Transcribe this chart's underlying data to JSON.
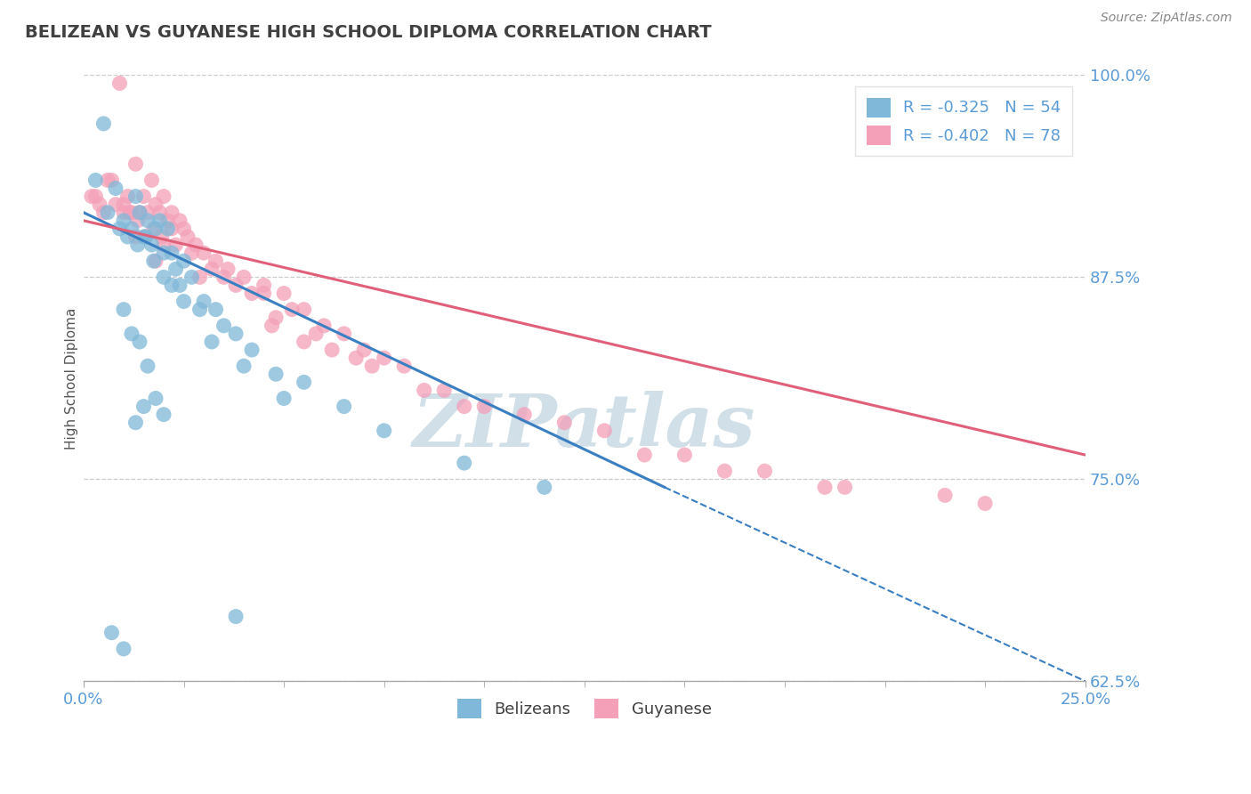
{
  "title": "BELIZEAN VS GUYANESE HIGH SCHOOL DIPLOMA CORRELATION CHART",
  "source": "Source: ZipAtlas.com",
  "ylabel": "High School Diploma",
  "xlim": [
    0.0,
    25.0
  ],
  "ylim": [
    62.5,
    100.0
  ],
  "yticks": [
    62.5,
    75.0,
    87.5,
    100.0
  ],
  "xticks": [
    0.0,
    25.0
  ],
  "r_blue": -0.325,
  "n_blue": 54,
  "r_pink": -0.402,
  "n_pink": 78,
  "color_blue": "#7fb8d8",
  "color_pink": "#f4a0b8",
  "color_blue_line": "#3a7fc1",
  "color_pink_line": "#e0607a",
  "color_title": "#404040",
  "color_axis_labels": "#5b9bd5",
  "watermark_text": "ZIPatlas",
  "watermark_color": "#d0dfe8",
  "blue_line_x0": 0.0,
  "blue_line_y0": 91.5,
  "blue_line_x1": 14.5,
  "blue_line_y1": 74.5,
  "blue_dash_x0": 14.5,
  "blue_dash_y0": 74.5,
  "blue_dash_x1": 25.0,
  "blue_dash_y1": 62.5,
  "pink_line_x0": 0.0,
  "pink_line_y0": 91.0,
  "pink_line_x1": 25.0,
  "pink_line_y1": 76.5,
  "blue_scatter_x": [
    0.5,
    0.8,
    1.0,
    1.2,
    1.3,
    1.4,
    1.5,
    1.6,
    1.7,
    1.8,
    1.9,
    2.0,
    2.1,
    2.2,
    2.3,
    2.5,
    2.7,
    3.0,
    3.3,
    3.8,
    4.2,
    5.5,
    6.5,
    7.5,
    9.5,
    11.5,
    0.3,
    0.6,
    0.9,
    1.1,
    1.35,
    1.55,
    1.75,
    2.0,
    2.4,
    2.9,
    3.5,
    4.8,
    1.0,
    1.2,
    1.4,
    1.6,
    1.8,
    2.0,
    1.5,
    1.3,
    2.5,
    3.2,
    4.0,
    5.0,
    2.2,
    0.7,
    1.0,
    3.8
  ],
  "blue_scatter_y": [
    97.0,
    93.0,
    91.0,
    90.5,
    92.5,
    91.5,
    90.0,
    91.0,
    89.5,
    90.5,
    91.0,
    89.0,
    90.5,
    89.0,
    88.0,
    88.5,
    87.5,
    86.0,
    85.5,
    84.0,
    83.0,
    81.0,
    79.5,
    78.0,
    76.0,
    74.5,
    93.5,
    91.5,
    90.5,
    90.0,
    89.5,
    90.0,
    88.5,
    87.5,
    87.0,
    85.5,
    84.5,
    81.5,
    85.5,
    84.0,
    83.5,
    82.0,
    80.0,
    79.0,
    79.5,
    78.5,
    86.0,
    83.5,
    82.0,
    80.0,
    87.0,
    65.5,
    64.5,
    66.5
  ],
  "pink_scatter_x": [
    0.3,
    0.5,
    0.7,
    0.9,
    1.0,
    1.1,
    1.2,
    1.3,
    1.4,
    1.5,
    1.6,
    1.7,
    1.8,
    1.9,
    2.0,
    2.1,
    2.2,
    2.4,
    2.6,
    2.8,
    3.0,
    3.3,
    3.6,
    4.0,
    4.5,
    5.0,
    5.5,
    6.0,
    6.5,
    7.0,
    7.5,
    8.0,
    9.0,
    10.0,
    11.0,
    12.0,
    13.0,
    15.0,
    17.0,
    19.0,
    21.5,
    0.8,
    1.15,
    1.35,
    1.55,
    2.3,
    3.5,
    4.8,
    6.2,
    8.5,
    5.8,
    2.5,
    1.75,
    1.95,
    2.2,
    2.7,
    3.2,
    4.2,
    5.2,
    7.2,
    0.4,
    0.6,
    1.0,
    3.8,
    6.8,
    9.5,
    14.0,
    16.0,
    18.5,
    1.3,
    2.0,
    1.8,
    4.5,
    5.5,
    22.5,
    0.2,
    2.9,
    4.7
  ],
  "pink_scatter_y": [
    92.5,
    91.5,
    93.5,
    99.5,
    92.0,
    92.5,
    91.5,
    94.5,
    91.5,
    92.5,
    91.5,
    93.5,
    92.0,
    91.5,
    92.5,
    91.0,
    91.5,
    91.0,
    90.0,
    89.5,
    89.0,
    88.5,
    88.0,
    87.5,
    87.0,
    86.5,
    85.5,
    84.5,
    84.0,
    83.0,
    82.5,
    82.0,
    80.5,
    79.5,
    79.0,
    78.5,
    78.0,
    76.5,
    75.5,
    74.5,
    74.0,
    92.0,
    91.5,
    91.0,
    90.0,
    89.5,
    87.5,
    85.0,
    83.0,
    80.5,
    84.0,
    90.5,
    90.5,
    90.0,
    90.5,
    89.0,
    88.0,
    86.5,
    85.5,
    82.0,
    92.0,
    93.5,
    91.5,
    87.0,
    82.5,
    79.5,
    76.5,
    75.5,
    74.5,
    90.0,
    89.5,
    88.5,
    86.5,
    83.5,
    73.5,
    92.5,
    87.5,
    84.5
  ]
}
